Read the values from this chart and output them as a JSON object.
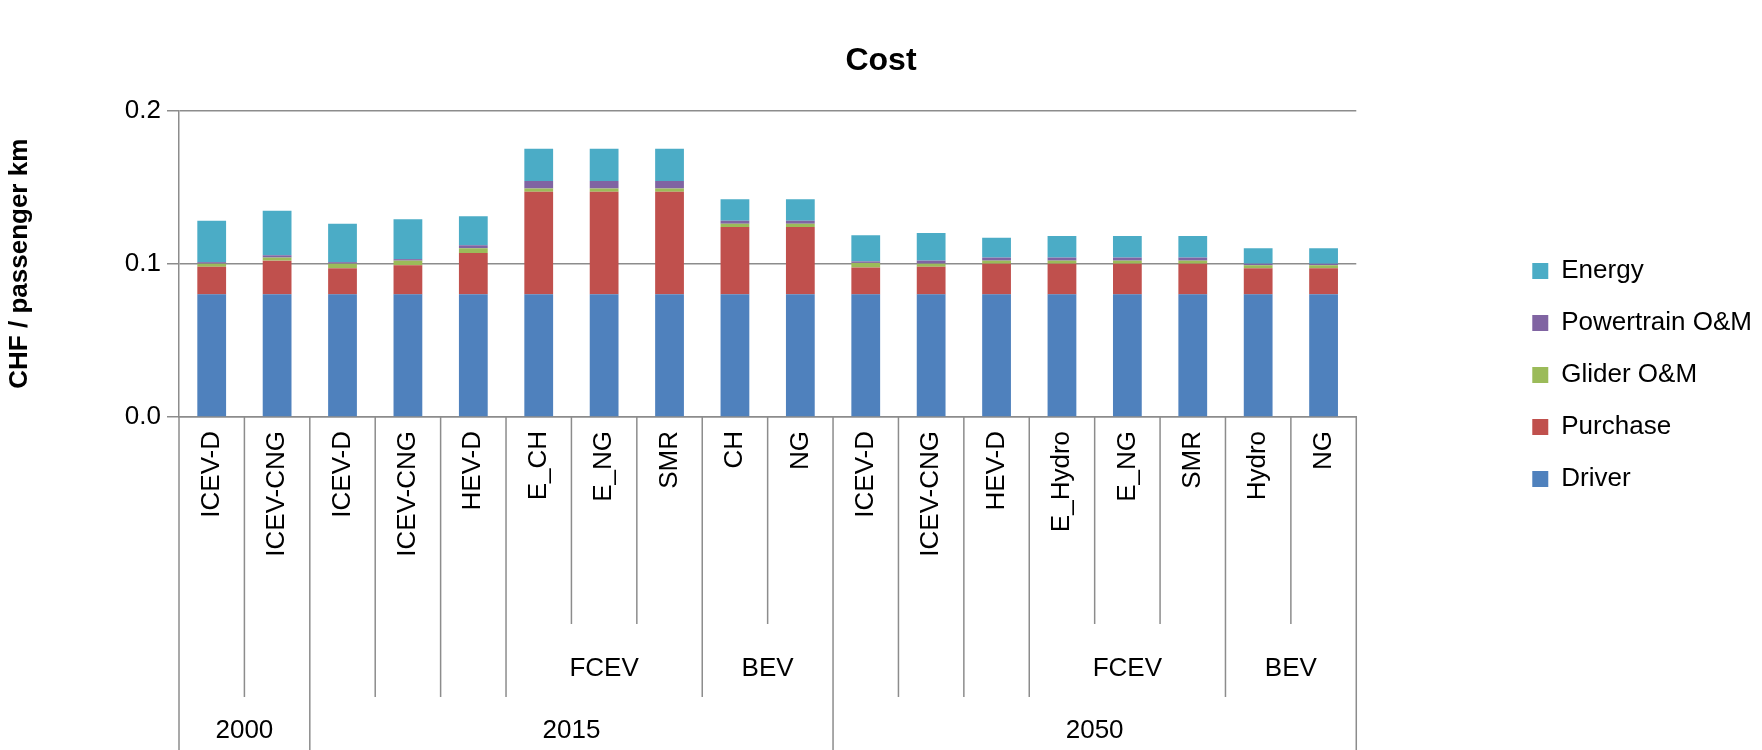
{
  "chart_data": {
    "type": "bar",
    "title": "Cost",
    "ylabel": "CHF / passenger km",
    "stacked": true,
    "categories": [
      "ICEV-D",
      "ICEV-CNG",
      "ICEV-D",
      "ICEV-CNG",
      "HEV-D",
      "E_CH",
      "E_NG",
      "SMR",
      "CH",
      "NG",
      "ICEV-D",
      "ICEV-CNG",
      "HEV-D",
      "E_Hydro",
      "E_NG",
      "SMR",
      "Hydro",
      "NG"
    ],
    "series": [
      {
        "name": "Driver",
        "color": "#4f81bd",
        "values": [
          0.08,
          0.08,
          0.08,
          0.08,
          0.08,
          0.08,
          0.08,
          0.08,
          0.08,
          0.08,
          0.08,
          0.08,
          0.08,
          0.08,
          0.08,
          0.08,
          0.08,
          0.08
        ]
      },
      {
        "name": "Purchase",
        "color": "#c0504d",
        "values": [
          0.018,
          0.022,
          0.017,
          0.019,
          0.027,
          0.067,
          0.067,
          0.067,
          0.044,
          0.044,
          0.0175,
          0.018,
          0.02,
          0.02,
          0.02,
          0.02,
          0.017,
          0.017
        ]
      },
      {
        "name": "Glider O&M",
        "color": "#9bbb59",
        "values": [
          0.002,
          0.002,
          0.003,
          0.003,
          0.003,
          0.002,
          0.002,
          0.002,
          0.002,
          0.002,
          0.003,
          0.002,
          0.002,
          0.002,
          0.002,
          0.002,
          0.002,
          0.002
        ]
      },
      {
        "name": "Powertrain O&M",
        "color": "#8064a2",
        "values": [
          0.001,
          0.0015,
          0.001,
          0.001,
          0.002,
          0.005,
          0.005,
          0.005,
          0.002,
          0.002,
          0.001,
          0.002,
          0.002,
          0.002,
          0.002,
          0.002,
          0.001,
          0.001
        ]
      },
      {
        "name": "Energy",
        "color": "#4bacc6",
        "values": [
          0.027,
          0.029,
          0.025,
          0.026,
          0.019,
          0.021,
          0.021,
          0.021,
          0.014,
          0.014,
          0.017,
          0.018,
          0.013,
          0.014,
          0.014,
          0.014,
          0.01,
          0.01
        ]
      }
    ],
    "ylim": [
      0,
      0.2
    ],
    "yticks": [
      {
        "value": 0,
        "label": "0.0"
      },
      0.1,
      0.2
    ],
    "grid": "y",
    "legend": "right",
    "annotations": [
      "FCEV",
      "BEV",
      "FCEV",
      "BEV",
      "2000",
      "2015",
      "2050"
    ]
  }
}
